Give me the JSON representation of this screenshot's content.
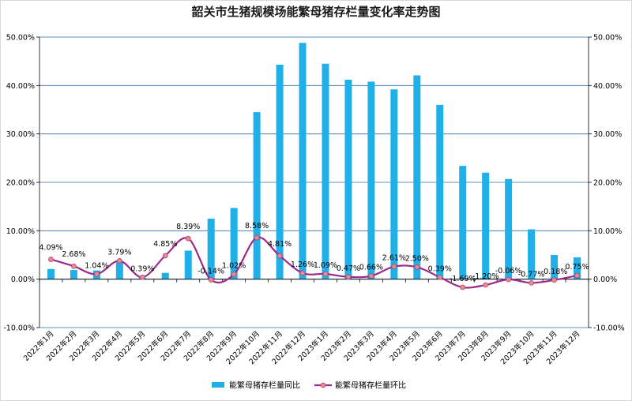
{
  "chart_data": {
    "type": "bar+line",
    "title": "韶关市生猪规模场能繁母猪存栏量变化率走势图",
    "categories": [
      "2022年1月",
      "2022年2月",
      "2022年3月",
      "2022年4月",
      "2022年5月",
      "2022年6月",
      "2022年7月",
      "2022年8月",
      "2022年9月",
      "2022年10月",
      "2022年11月",
      "2022年12月",
      "2023年1月",
      "2023年2月",
      "2023年3月",
      "2023年4月",
      "2023年5月",
      "2023年6月",
      "2023年7月",
      "2023年8月",
      "2023年9月",
      "2023年10月",
      "2023年11月",
      "2023年12月"
    ],
    "series": [
      {
        "name": "能繁母猪存栏量同比",
        "kind": "bar",
        "axis": "left",
        "color": "#1fb0e8",
        "values": [
          2.1,
          1.9,
          1.8,
          3.5,
          0.3,
          1.3,
          5.9,
          12.5,
          14.7,
          34.5,
          44.3,
          48.8,
          44.5,
          41.2,
          40.8,
          39.2,
          42.1,
          36.0,
          23.4,
          22.0,
          20.7,
          10.3,
          5.0,
          4.5
        ]
      },
      {
        "name": "能繁母猪存栏量环比",
        "kind": "line",
        "axis": "right",
        "color": "#9c2a8e",
        "marker_color": "#e58b8b",
        "values": [
          4.09,
          2.68,
          1.04,
          3.79,
          0.39,
          4.85,
          8.39,
          -0.14,
          1.02,
          8.58,
          4.81,
          1.26,
          1.09,
          0.47,
          0.66,
          2.61,
          2.5,
          0.39,
          -1.69,
          -1.2,
          -0.06,
          -0.77,
          -0.18,
          0.75
        ],
        "labels": [
          "4.09%",
          "2.68%",
          "1.04%",
          "3.79%",
          "0.39%",
          "4.85%",
          "8.39%",
          "-0.14%",
          "1.02%",
          "8.58%",
          "4.81%",
          "1.26%",
          "1.09%",
          "0.47%",
          "0.66%",
          "2.61%",
          "2.50%",
          "0.39%",
          "-1.69%",
          "-1.20%",
          "-0.06%",
          "-0.77%",
          "-0.18%",
          "0.75%"
        ]
      }
    ],
    "ylim": [
      -10,
      50
    ],
    "yticks": [
      "-10.00%",
      "0.00%",
      "10.00%",
      "20.00%",
      "30.00%",
      "40.00%",
      "50.00%"
    ],
    "y2ticks": [
      "-10.00%",
      "0.00%",
      "10.00%",
      "20.00%",
      "30.00%",
      "40.00%",
      "50.00%"
    ],
    "grid": true,
    "legend_position": "bottom"
  }
}
